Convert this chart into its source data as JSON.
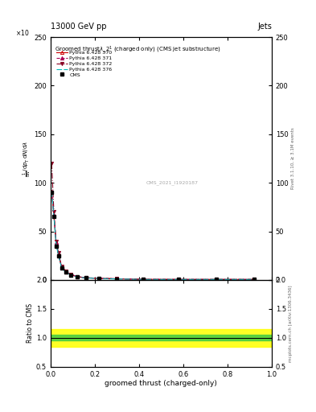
{
  "title_energy": "13000 GeV pp",
  "title_right": "Jets",
  "plot_title_line1": "Groomed thrust",
  "xlabel": "groomed thrust (charged-only)",
  "ylabel_ratio": "Ratio to CMS",
  "watermark": "CMS_2021_I1920187",
  "rivet_label": "Rivet 3.1.10, ≥ 3.1M events",
  "mcplots_label": "mcplots.cern.ch [arXiv:1306.3436]",
  "ylim_main": [
    0,
    250
  ],
  "ylim_ratio": [
    0.5,
    2.0
  ],
  "xlim": [
    0,
    1
  ],
  "cms_data_x": [
    0.005,
    0.015,
    0.025,
    0.035,
    0.05,
    0.07,
    0.09,
    0.12,
    0.16,
    0.22,
    0.3,
    0.42,
    0.58,
    0.75,
    0.92
  ],
  "cms_data_y": [
    90,
    65,
    35,
    25,
    12,
    8,
    5,
    3,
    2,
    1.5,
    1,
    0.5,
    0.5,
    0.5,
    0.5
  ],
  "pythia_x": [
    0.005,
    0.015,
    0.025,
    0.035,
    0.05,
    0.07,
    0.09,
    0.12,
    0.16,
    0.22,
    0.3,
    0.42,
    0.58,
    0.75,
    0.92
  ],
  "pythia370_y": [
    91,
    66,
    38,
    27,
    13,
    8.5,
    5.5,
    3.2,
    2.1,
    1.6,
    1.1,
    0.6,
    0.5,
    0.5,
    0.5
  ],
  "pythia371_y": [
    91,
    67,
    39,
    27.5,
    13.5,
    9,
    5.8,
    3.4,
    2.2,
    1.7,
    1.2,
    0.6,
    0.5,
    0.5,
    0.5
  ],
  "pythia372_y": [
    120,
    70,
    40,
    28,
    14,
    9,
    6,
    3.5,
    2.3,
    1.7,
    1.2,
    0.6,
    0.5,
    0.5,
    0.5
  ],
  "pythia376_y": [
    91,
    65,
    37,
    26,
    12,
    8,
    5.2,
    3.1,
    2.0,
    1.5,
    1.0,
    0.5,
    0.5,
    0.5,
    0.5
  ],
  "color_cms": "#000000",
  "color_py370": "#cc0000",
  "color_py371": "#aa0055",
  "color_py372": "#880022",
  "color_py376": "#00bbbb",
  "ratio_green_band": [
    0.95,
    1.05
  ],
  "ratio_yellow_band": [
    0.85,
    1.15
  ],
  "bg_color": "#ffffff"
}
